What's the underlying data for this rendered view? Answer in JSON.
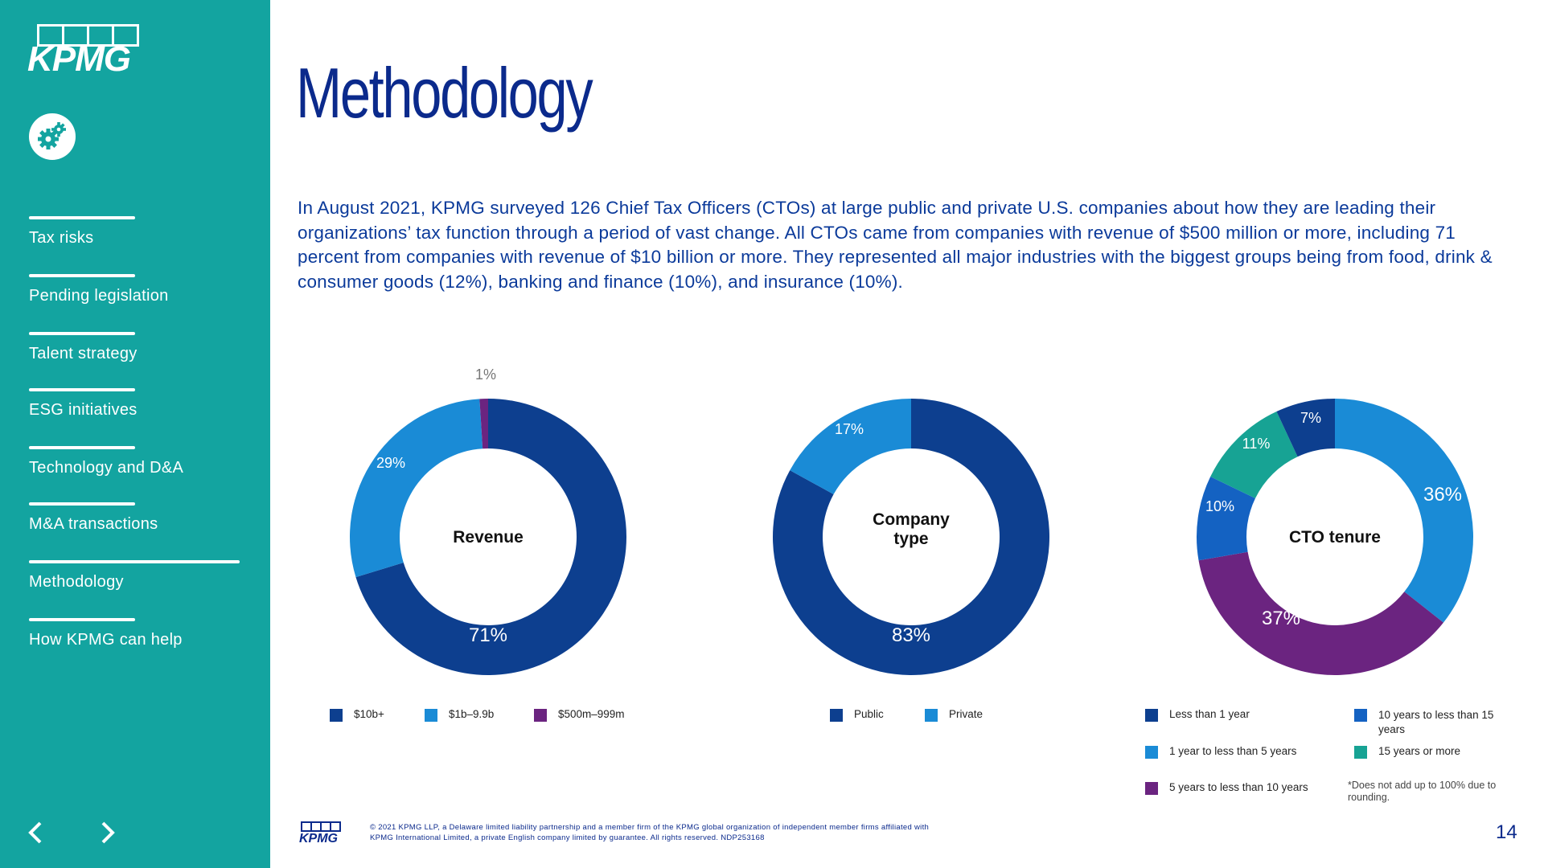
{
  "brand": {
    "logo_text": "KPMG"
  },
  "nav": {
    "items": [
      {
        "label": "Tax risks"
      },
      {
        "label": "Pending legislation"
      },
      {
        "label": "Talent strategy"
      },
      {
        "label": "ESG initiatives"
      },
      {
        "label": "Technology and D&A"
      },
      {
        "label": "M&A transactions"
      },
      {
        "label": "Methodology"
      },
      {
        "label": "How KPMG can help"
      }
    ],
    "active": "Methodology"
  },
  "page": {
    "title": "Methodology",
    "intro": "In August 2021, KPMG surveyed 126 Chief Tax Officers (CTOs) at large public and private U.S. companies about how they are leading their organizations’ tax function through a period of vast change.  All CTOs came from companies with revenue of $500 million or more, including 71 percent from companies with revenue of $10 billion or more.  They represented all major industries with the biggest groups being from food, drink & consumer goods (12%), banking and finance (10%), and insurance (10%).",
    "note": "*Does not add up to 100% due to rounding.",
    "footer": "© 2021 KPMG LLP, a Delaware limited liability partnership and a member firm of the KPMG global organization of independent member firms affiliated with KPMG International Limited, a private English company limited by guarantee. All rights reserved. NDP253168",
    "page_number": "14"
  },
  "colors": {
    "sidebar": "#13a4a0",
    "dark_blue": "#0d3f8f",
    "light_blue": "#1a8bd6",
    "purple": "#6b2480",
    "medium_blue": "#1462c2",
    "teal": "#17a394",
    "title": "#0b2a8c"
  },
  "chart_data": [
    {
      "type": "pie",
      "title": "Revenue",
      "categories": [
        "$10b+",
        "$1b–9.9b",
        "$500m–999m"
      ],
      "values": [
        71,
        29,
        1
      ],
      "labels": [
        "71%",
        "29%",
        "1%"
      ],
      "colors": [
        "#0d3f8f",
        "#1a8bd6",
        "#6b2480"
      ]
    },
    {
      "type": "pie",
      "title": "Company type",
      "title_lines": [
        "Company",
        "type"
      ],
      "categories": [
        "Public",
        "Private"
      ],
      "values": [
        83,
        17
      ],
      "labels": [
        "83%",
        "17%"
      ],
      "colors": [
        "#0d3f8f",
        "#1a8bd6"
      ]
    },
    {
      "type": "pie",
      "title": "CTO tenure",
      "categories": [
        "1 year to less than 5 years",
        "5 years to less than 10 years",
        "10 years to less than 15 years",
        "15 years or more",
        "Less than 1 year"
      ],
      "values": [
        36,
        37,
        10,
        11,
        7
      ],
      "labels": [
        "36%",
        "37%",
        "10%",
        "11%",
        "7%"
      ],
      "colors": [
        "#1a8bd6",
        "#6b2480",
        "#1462c2",
        "#17a394",
        "#0d3f8f"
      ],
      "legend_order": [
        "Less than 1 year",
        "10 years to less than 15 years",
        "1 year to less than 5 years",
        "15 years or more",
        "5 years to less than 10 years"
      ]
    }
  ]
}
